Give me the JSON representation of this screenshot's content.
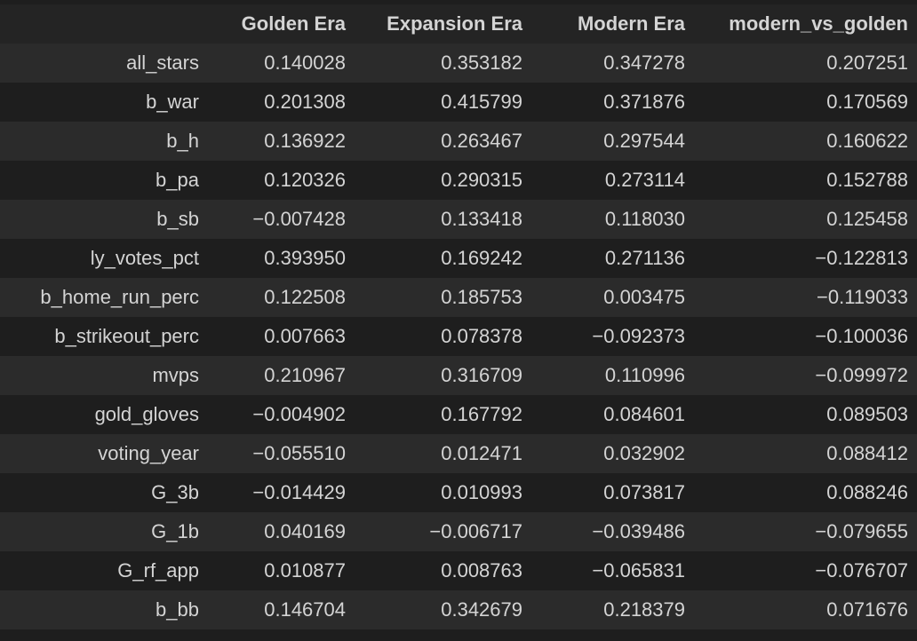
{
  "table": {
    "columns": [
      "",
      "Golden Era",
      "Expansion Era",
      "Modern Era",
      "modern_vs_golden"
    ],
    "rows": [
      {
        "index": "all_stars",
        "values": [
          "0.140028",
          "0.353182",
          "0.347278",
          "0.207251"
        ]
      },
      {
        "index": "b_war",
        "values": [
          "0.201308",
          "0.415799",
          "0.371876",
          "0.170569"
        ]
      },
      {
        "index": "b_h",
        "values": [
          "0.136922",
          "0.263467",
          "0.297544",
          "0.160622"
        ]
      },
      {
        "index": "b_pa",
        "values": [
          "0.120326",
          "0.290315",
          "0.273114",
          "0.152788"
        ]
      },
      {
        "index": "b_sb",
        "values": [
          "−0.007428",
          "0.133418",
          "0.118030",
          "0.125458"
        ]
      },
      {
        "index": "ly_votes_pct",
        "values": [
          "0.393950",
          "0.169242",
          "0.271136",
          "−0.122813"
        ]
      },
      {
        "index": "b_home_run_perc",
        "values": [
          "0.122508",
          "0.185753",
          "0.003475",
          "−0.119033"
        ]
      },
      {
        "index": "b_strikeout_perc",
        "values": [
          "0.007663",
          "0.078378",
          "−0.092373",
          "−0.100036"
        ]
      },
      {
        "index": "mvps",
        "values": [
          "0.210967",
          "0.316709",
          "0.110996",
          "−0.099972"
        ]
      },
      {
        "index": "gold_gloves",
        "values": [
          "−0.004902",
          "0.167792",
          "0.084601",
          "0.089503"
        ]
      },
      {
        "index": "voting_year",
        "values": [
          "−0.055510",
          "0.012471",
          "0.032902",
          "0.088412"
        ]
      },
      {
        "index": "G_3b",
        "values": [
          "−0.014429",
          "0.010993",
          "0.073817",
          "0.088246"
        ]
      },
      {
        "index": "G_1b",
        "values": [
          "0.040169",
          "−0.006717",
          "−0.039486",
          "−0.079655"
        ]
      },
      {
        "index": "G_rf_app",
        "values": [
          "0.010877",
          "0.008763",
          "−0.065831",
          "−0.076707"
        ]
      },
      {
        "index": "b_bb",
        "values": [
          "0.146704",
          "0.342679",
          "0.218379",
          "0.071676"
        ]
      }
    ]
  }
}
